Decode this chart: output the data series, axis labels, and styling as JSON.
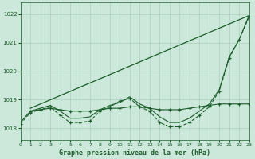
{
  "title": "Graphe pression niveau de la mer (hPa)",
  "background_color": "#cce8da",
  "grid_color": "#aacfbc",
  "line_color": "#1a5c2a",
  "xlim": [
    0,
    23
  ],
  "ylim": [
    1017.6,
    1022.4
  ],
  "yticks": [
    1018,
    1019,
    1020,
    1021,
    1022
  ],
  "xticks": [
    0,
    1,
    2,
    3,
    4,
    5,
    6,
    7,
    8,
    9,
    10,
    11,
    12,
    13,
    14,
    15,
    16,
    17,
    18,
    19,
    20,
    21,
    22,
    23
  ],
  "series": [
    {
      "x": [
        1,
        23
      ],
      "y": [
        1018.7,
        1021.95
      ],
      "style": "solid",
      "marker": null,
      "lw": 0.9
    },
    {
      "x": [
        0,
        1,
        2,
        3,
        4,
        5,
        6,
        7,
        8,
        9,
        10,
        11,
        12,
        13,
        14,
        15,
        16,
        17,
        18,
        19,
        20,
        21,
        22,
        23
      ],
      "y": [
        1018.15,
        1018.55,
        1018.65,
        1018.75,
        1018.45,
        1018.2,
        1018.2,
        1018.25,
        1018.6,
        1018.75,
        1018.95,
        1019.05,
        1018.75,
        1018.6,
        1018.2,
        1018.05,
        1018.05,
        1018.2,
        1018.45,
        1018.75,
        1019.3,
        1020.45,
        1021.1,
        1021.9
      ],
      "style": "dashed",
      "marker": "+",
      "lw": 0.8
    },
    {
      "x": [
        0,
        1,
        2,
        3,
        4,
        5,
        6,
        7,
        8,
        9,
        10,
        11,
        12,
        13,
        14,
        15,
        16,
        17,
        18,
        19,
        20,
        21,
        22,
        23
      ],
      "y": [
        1018.2,
        1018.6,
        1018.7,
        1018.8,
        1018.6,
        1018.35,
        1018.35,
        1018.4,
        1018.65,
        1018.8,
        1018.9,
        1019.1,
        1018.85,
        1018.7,
        1018.4,
        1018.2,
        1018.2,
        1018.35,
        1018.6,
        1018.85,
        1019.35,
        1020.5,
        1021.1,
        1021.95
      ],
      "style": "solid",
      "marker": null,
      "lw": 0.8
    },
    {
      "x": [
        1,
        2,
        3,
        4,
        5,
        6,
        7,
        8,
        9,
        10,
        11,
        12,
        13,
        14,
        15,
        16,
        17,
        18,
        19,
        20,
        21,
        22,
        23
      ],
      "y": [
        1018.6,
        1018.65,
        1018.7,
        1018.65,
        1018.6,
        1018.6,
        1018.6,
        1018.65,
        1018.7,
        1018.7,
        1018.75,
        1018.75,
        1018.7,
        1018.65,
        1018.65,
        1018.65,
        1018.7,
        1018.75,
        1018.8,
        1018.85,
        1018.85,
        1018.85,
        1018.85
      ],
      "style": "solid",
      "marker": "+",
      "lw": 0.8
    }
  ]
}
